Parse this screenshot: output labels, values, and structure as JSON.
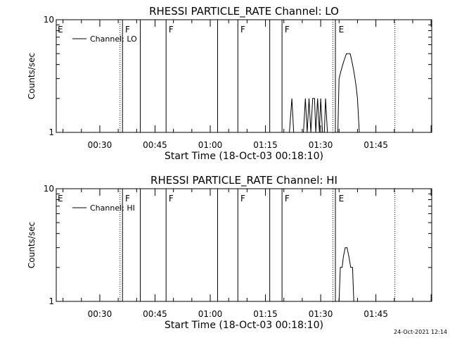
{
  "footer": {
    "timestamp": "24-Oct-2021 12:14"
  },
  "chart_data": [
    {
      "type": "line",
      "title": "RHESSI PARTICLE_RATE Channel: LO",
      "xlabel": "Start Time (18-Oct-03 00:18:10)",
      "ylabel": "Counts/sec",
      "y_scale": "log",
      "ylim": [
        1,
        10
      ],
      "y_ticks": [
        "1",
        "10"
      ],
      "xlim": [
        "00:18:10",
        "02:00:10"
      ],
      "x_ticks": [
        "00:30",
        "00:45",
        "01:00",
        "01:15",
        "01:30",
        "01:45"
      ],
      "legend": {
        "label": "Channel: LO",
        "placement": "top-left"
      },
      "event_lines": [
        {
          "time": "00:35:30",
          "style": "dotted"
        },
        {
          "time": "00:36:10",
          "style": "solid"
        },
        {
          "time": "00:41:00",
          "style": "solid"
        },
        {
          "time": "00:48:00",
          "style": "solid"
        },
        {
          "time": "01:02:00",
          "style": "solid"
        },
        {
          "time": "01:07:30",
          "style": "solid"
        },
        {
          "time": "01:16:10",
          "style": "solid"
        },
        {
          "time": "01:19:30",
          "style": "solid"
        },
        {
          "time": "01:33:20",
          "style": "dotted"
        },
        {
          "time": "01:34:00",
          "style": "solid"
        },
        {
          "time": "01:50:10",
          "style": "dotted"
        }
      ],
      "markers": [
        {
          "label": "E",
          "time": "00:18:10"
        },
        {
          "label": "F",
          "time": "00:36:30"
        },
        {
          "label": "F",
          "time": "00:48:20"
        },
        {
          "label": "F",
          "time": "01:07:50"
        },
        {
          "label": "F",
          "time": "01:19:50"
        },
        {
          "label": "E",
          "time": "01:34:30"
        }
      ],
      "series": [
        {
          "name": "Channel: LO",
          "points": [
            [
              "01:21:30",
              1
            ],
            [
              "01:22:10",
              2
            ],
            [
              "01:22:40",
              1
            ],
            [
              "01:25:20",
              1
            ],
            [
              "01:25:50",
              2
            ],
            [
              "01:26:20",
              1
            ],
            [
              "01:26:50",
              2
            ],
            [
              "01:27:20",
              1
            ],
            [
              "01:27:50",
              2
            ],
            [
              "01:28:20",
              2
            ],
            [
              "01:28:40",
              1
            ],
            [
              "01:29:10",
              2
            ],
            [
              "01:29:40",
              1
            ],
            [
              "01:30:00",
              2
            ],
            [
              "01:30:30",
              1
            ],
            [
              "01:31:00",
              1
            ],
            [
              "01:31:20",
              2
            ],
            [
              "01:31:50",
              1
            ],
            [
              "01:34:40",
              1
            ],
            [
              "01:35:00",
              3
            ],
            [
              "01:35:30",
              3.5
            ],
            [
              "01:36:00",
              4
            ],
            [
              "01:36:30",
              4.5
            ],
            [
              "01:37:00",
              5
            ],
            [
              "01:38:00",
              5
            ],
            [
              "01:38:20",
              4.5
            ],
            [
              "01:38:40",
              4
            ],
            [
              "01:39:00",
              3.5
            ],
            [
              "01:39:20",
              3
            ],
            [
              "01:39:40",
              2.5
            ],
            [
              "01:40:00",
              2
            ],
            [
              "01:40:30",
              1
            ]
          ]
        }
      ]
    },
    {
      "type": "line",
      "title": "RHESSI PARTICLE_RATE Channel: HI",
      "xlabel": "Start Time (18-Oct-03 00:18:10)",
      "ylabel": "Counts/sec",
      "y_scale": "log",
      "ylim": [
        1,
        10
      ],
      "y_ticks": [
        "1",
        "10"
      ],
      "xlim": [
        "00:18:10",
        "02:00:10"
      ],
      "x_ticks": [
        "00:30",
        "00:45",
        "01:00",
        "01:15",
        "01:30",
        "01:45"
      ],
      "legend": {
        "label": "Channel: HI",
        "placement": "top-left"
      },
      "event_lines": [
        {
          "time": "00:35:30",
          "style": "dotted"
        },
        {
          "time": "00:36:10",
          "style": "solid"
        },
        {
          "time": "00:41:00",
          "style": "solid"
        },
        {
          "time": "00:48:00",
          "style": "solid"
        },
        {
          "time": "01:02:00",
          "style": "solid"
        },
        {
          "time": "01:07:30",
          "style": "solid"
        },
        {
          "time": "01:16:10",
          "style": "solid"
        },
        {
          "time": "01:19:30",
          "style": "solid"
        },
        {
          "time": "01:33:20",
          "style": "dotted"
        },
        {
          "time": "01:34:00",
          "style": "solid"
        },
        {
          "time": "01:50:10",
          "style": "dotted"
        }
      ],
      "markers": [
        {
          "label": "E",
          "time": "00:18:10"
        },
        {
          "label": "F",
          "time": "00:36:30"
        },
        {
          "label": "F",
          "time": "00:48:20"
        },
        {
          "label": "F",
          "time": "01:07:50"
        },
        {
          "label": "F",
          "time": "01:19:50"
        },
        {
          "label": "E",
          "time": "01:34:30"
        }
      ],
      "series": [
        {
          "name": "Channel: HI",
          "points": [
            [
              "01:35:00",
              1
            ],
            [
              "01:35:20",
              2
            ],
            [
              "01:35:50",
              2
            ],
            [
              "01:36:10",
              2.5
            ],
            [
              "01:36:40",
              3
            ],
            [
              "01:37:10",
              3
            ],
            [
              "01:37:40",
              2.5
            ],
            [
              "01:38:10",
              2
            ],
            [
              "01:38:40",
              2
            ],
            [
              "01:39:00",
              1
            ]
          ]
        }
      ]
    }
  ]
}
